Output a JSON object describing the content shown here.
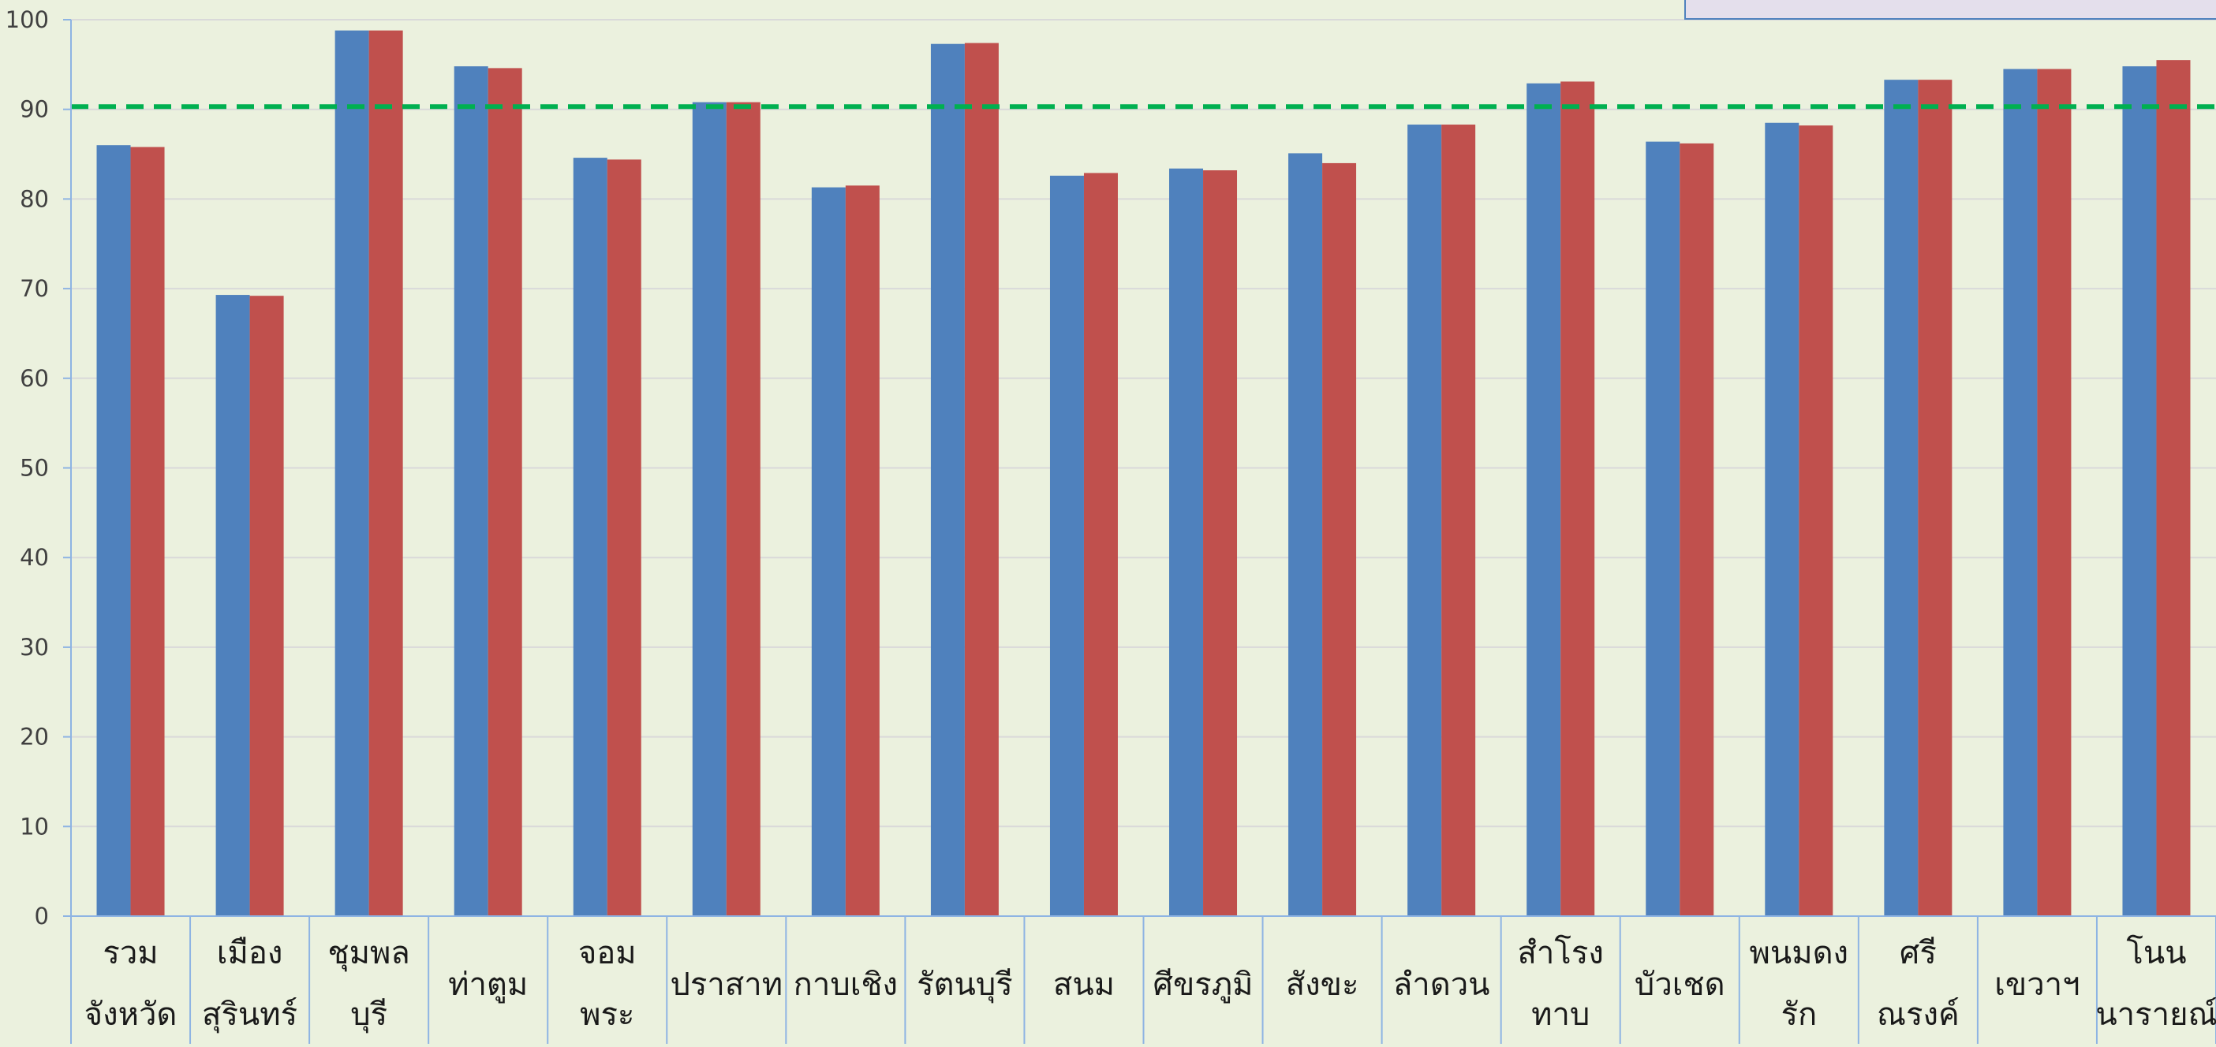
{
  "chart_data": {
    "type": "bar",
    "title": "",
    "xlabel": "",
    "ylabel": "",
    "ylim": [
      0,
      100
    ],
    "yticks": [
      0,
      10,
      20,
      30,
      40,
      50,
      60,
      70,
      80,
      90,
      100
    ],
    "grid": true,
    "categories": [
      [
        "รวม",
        "จังหวัด"
      ],
      [
        "เมือง",
        "สุรินทร์"
      ],
      [
        "ชุมพล",
        "บุรี"
      ],
      [
        "ท่าตูม"
      ],
      [
        "จอม",
        "พระ"
      ],
      [
        "ปราสาท"
      ],
      [
        "กาบเชิง"
      ],
      [
        "รัตนบุรี"
      ],
      [
        "สนม"
      ],
      [
        "ศีขรภูมิ"
      ],
      [
        "สังขะ"
      ],
      [
        "ลำดวน"
      ],
      [
        "สำโรง",
        "ทาบ"
      ],
      [
        "บัวเชด"
      ],
      [
        "พนมดง",
        "รัก"
      ],
      [
        "ศรี",
        "ณรงค์"
      ],
      [
        "เขวาฯ"
      ],
      [
        "โนน",
        "นารายณ์"
      ]
    ],
    "series": [
      {
        "color": "#4f81bd",
        "values": [
          86.0,
          69.3,
          98.8,
          94.8,
          84.6,
          90.8,
          81.3,
          97.3,
          82.6,
          83.4,
          85.1,
          88.3,
          92.9,
          86.4,
          88.5,
          93.3,
          94.5,
          94.8
        ]
      },
      {
        "color": "#c0504d",
        "values": [
          85.8,
          69.2,
          98.8,
          94.6,
          84.4,
          90.8,
          81.5,
          97.4,
          82.9,
          83.2,
          84.0,
          88.3,
          93.1,
          86.2,
          88.2,
          93.3,
          94.5,
          95.5
        ]
      }
    ],
    "reference_line": {
      "value": 90.3,
      "color": "#00b050",
      "style": "dashed"
    },
    "legend": {
      "position": "top-right"
    }
  }
}
